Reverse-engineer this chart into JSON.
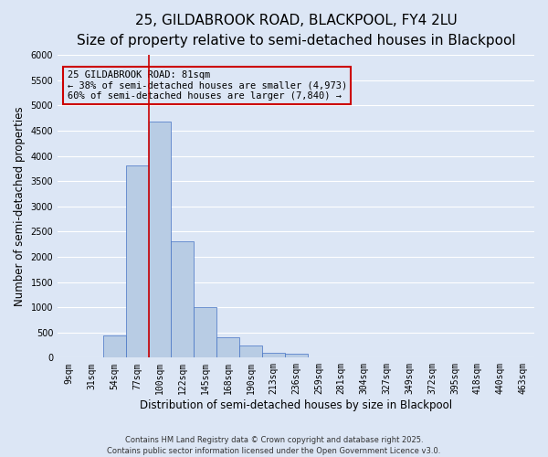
{
  "title": "25, GILDABROOK ROAD, BLACKPOOL, FY4 2LU",
  "subtitle": "Size of property relative to semi-detached houses in Blackpool",
  "xlabel": "Distribution of semi-detached houses by size in Blackpool",
  "ylabel": "Number of semi-detached properties",
  "bin_labels": [
    "9sqm",
    "31sqm",
    "54sqm",
    "77sqm",
    "100sqm",
    "122sqm",
    "145sqm",
    "168sqm",
    "190sqm",
    "213sqm",
    "236sqm",
    "259sqm",
    "281sqm",
    "304sqm",
    "327sqm",
    "349sqm",
    "372sqm",
    "395sqm",
    "418sqm",
    "440sqm",
    "463sqm"
  ],
  "bar_heights": [
    0,
    0,
    450,
    3820,
    4680,
    2300,
    1000,
    400,
    250,
    100,
    70,
    0,
    0,
    0,
    0,
    0,
    0,
    0,
    0,
    0,
    0
  ],
  "bar_color": "#b8cce4",
  "bar_edge_color": "#4472c4",
  "ylim": [
    0,
    6000
  ],
  "yticks": [
    0,
    500,
    1000,
    1500,
    2000,
    2500,
    3000,
    3500,
    4000,
    4500,
    5000,
    5500,
    6000
  ],
  "vline_x_index": 3,
  "vline_color": "#cc0000",
  "annotation_line1": "25 GILDABROOK ROAD: 81sqm",
  "annotation_line2": "← 38% of semi-detached houses are smaller (4,973)",
  "annotation_line3": "60% of semi-detached houses are larger (7,840) →",
  "annotation_box_color": "#cc0000",
  "background_color": "#dce6f5",
  "grid_color": "#ffffff",
  "footer_text": "Contains HM Land Registry data © Crown copyright and database right 2025.\nContains public sector information licensed under the Open Government Licence v3.0.",
  "title_fontsize": 11,
  "subtitle_fontsize": 9,
  "axis_label_fontsize": 8.5,
  "tick_fontsize": 7,
  "annotation_fontsize": 7.5,
  "footer_fontsize": 6
}
